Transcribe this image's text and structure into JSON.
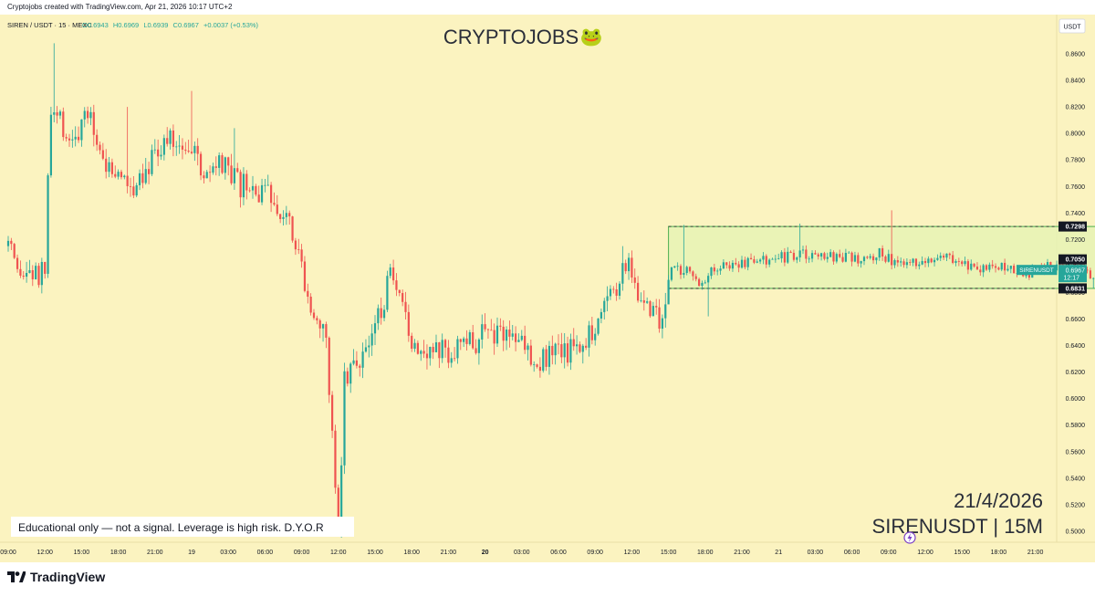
{
  "header": {
    "created_by": "Cryptojobs created with TradingView.com, Apr 21, 2026 10:17 UTC+2"
  },
  "legend": {
    "symbol": "SIREN / USDT · 15 · MEXC",
    "open": "O0.6943",
    "high": "H0.6969",
    "low": "L0.6939",
    "close": "C0.6967",
    "change": "+0.0037 (+0.53%)"
  },
  "watermark": {
    "title": "CRYPTOJOBS",
    "emoji": "🐸"
  },
  "annotations": {
    "disclaimer": "Educational only — not a signal. Leverage is high risk. D.Y.O.R",
    "date": "21/4/2026",
    "pair_tf": "SIRENUSDT | 15M"
  },
  "price_scale": {
    "currency": "USDT",
    "range_top_label": "0.7298",
    "range_bottom_label": "0.6831",
    "range_mid_label": "0.7050",
    "last_price_symbol": "SIRENUSDT",
    "last_price": "0.6967",
    "countdown": "12:17"
  },
  "brand": "TradingView",
  "colors": {
    "background": "#fbf3c0",
    "up": "#26a69a",
    "down": "#ef5350",
    "box_fill": "#e6f2b4",
    "box_border": "#4caf50"
  },
  "chart_data": {
    "type": "candlestick",
    "title": "CRYPTOJOBS",
    "symbol": "SIREN / USDT",
    "interval": "15",
    "exchange": "MEXC",
    "ylim": [
      0.49,
      0.87
    ],
    "y_ticks": [
      "0.8600",
      "0.8400",
      "0.8200",
      "0.8000",
      "0.7800",
      "0.7600",
      "0.7400",
      "0.7200",
      "0.7000",
      "0.6800",
      "0.6600",
      "0.6400",
      "0.6200",
      "0.6000",
      "0.5800",
      "0.5600",
      "0.5400",
      "0.5200",
      "0.5000"
    ],
    "x_ticks": [
      "09:00",
      "12:00",
      "15:00",
      "18:00",
      "21:00",
      "19",
      "03:00",
      "06:00",
      "09:00",
      "12:00",
      "15:00",
      "18:00",
      "21:00",
      "20",
      "03:00",
      "06:00",
      "09:00",
      "12:00",
      "15:00",
      "18:00",
      "21:00",
      "21",
      "03:00",
      "06:00",
      "09:00",
      "12:00",
      "15:00",
      "18:00",
      "21:00"
    ],
    "x_ticks_bold": [
      "20"
    ],
    "candles_per_tick": 12,
    "x_start": 0,
    "key_path": [
      [
        0,
        0.715
      ],
      [
        3,
        0.688
      ],
      [
        7,
        0.695
      ],
      [
        10,
        0.69
      ],
      [
        12,
        0.7
      ],
      [
        14,
        0.815
      ],
      [
        16,
        0.81
      ],
      [
        21,
        0.795
      ],
      [
        27,
        0.812
      ],
      [
        32,
        0.775
      ],
      [
        40,
        0.76
      ],
      [
        50,
        0.792
      ],
      [
        58,
        0.795
      ],
      [
        65,
        0.765
      ],
      [
        70,
        0.775
      ],
      [
        75,
        0.76
      ],
      [
        82,
        0.755
      ],
      [
        88,
        0.748
      ],
      [
        92,
        0.74
      ],
      [
        96,
        0.7
      ],
      [
        100,
        0.665
      ],
      [
        104,
        0.64
      ],
      [
        108,
        0.505
      ],
      [
        110,
        0.615
      ],
      [
        115,
        0.632
      ],
      [
        119,
        0.645
      ],
      [
        125,
        0.69
      ],
      [
        128,
        0.67
      ],
      [
        132,
        0.645
      ],
      [
        140,
        0.635
      ],
      [
        150,
        0.64
      ],
      [
        160,
        0.652
      ],
      [
        166,
        0.648
      ],
      [
        172,
        0.632
      ],
      [
        178,
        0.63
      ],
      [
        185,
        0.64
      ],
      [
        192,
        0.655
      ],
      [
        198,
        0.685
      ],
      [
        203,
        0.7
      ],
      [
        206,
        0.68
      ],
      [
        210,
        0.665
      ],
      [
        214,
        0.66
      ],
      [
        217,
        0.7
      ],
      [
        222,
        0.696
      ],
      [
        226,
        0.688
      ],
      [
        232,
        0.7
      ],
      [
        260,
        0.708
      ],
      [
        280,
        0.705
      ],
      [
        285,
        0.71
      ],
      [
        290,
        0.702
      ],
      [
        295,
        0.7
      ],
      [
        305,
        0.71
      ],
      [
        312,
        0.703
      ],
      [
        318,
        0.697
      ],
      [
        326,
        0.7
      ],
      [
        335,
        0.695
      ],
      [
        340,
        0.7
      ],
      [
        346,
        0.698
      ],
      [
        350,
        0.702
      ],
      [
        355,
        0.69
      ],
      [
        357,
        0.696
      ]
    ],
    "spikes": [
      {
        "i": 15,
        "high": 0.868
      },
      {
        "i": 39,
        "high": 0.82
      },
      {
        "i": 60,
        "high": 0.832
      },
      {
        "i": 74,
        "high": 0.804
      },
      {
        "i": 103,
        "low": 0.643
      },
      {
        "i": 108,
        "low": 0.505
      },
      {
        "i": 201,
        "high": 0.715
      },
      {
        "i": 221,
        "high": 0.731
      },
      {
        "i": 229,
        "low": 0.662
      },
      {
        "i": 259,
        "high": 0.732
      },
      {
        "i": 289,
        "high": 0.742
      },
      {
        "i": 355,
        "low": 0.683
      }
    ],
    "range_box": {
      "start_index": 216,
      "end_index": 390,
      "top": 0.7298,
      "bottom": 0.6831
    },
    "levels": [
      0.7298,
      0.6831
    ],
    "last_price": 0.6967,
    "open": 0.6943,
    "high": 0.6969,
    "low": 0.6939,
    "close": 0.6967
  }
}
